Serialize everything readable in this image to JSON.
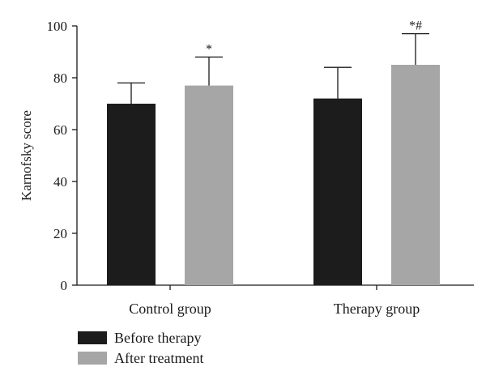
{
  "chart_data": {
    "type": "bar",
    "ylabel": "Karnofsky score",
    "xlabel": "",
    "ylim": [
      0,
      100
    ],
    "yticks": [
      0,
      20,
      40,
      60,
      80,
      100
    ],
    "categories": [
      "Control group",
      "Therapy group"
    ],
    "series": [
      {
        "name": "Before therapy",
        "values": [
          70,
          72
        ],
        "errors": [
          8,
          12
        ],
        "markers": [
          "",
          ""
        ],
        "color": "#1c1c1c"
      },
      {
        "name": "After treatment",
        "values": [
          77,
          85
        ],
        "errors": [
          11,
          12
        ],
        "markers": [
          "*",
          "*#"
        ],
        "color": "#a6a6a6"
      }
    ],
    "legend": {
      "placement": "bottom-left"
    },
    "grid": false
  }
}
